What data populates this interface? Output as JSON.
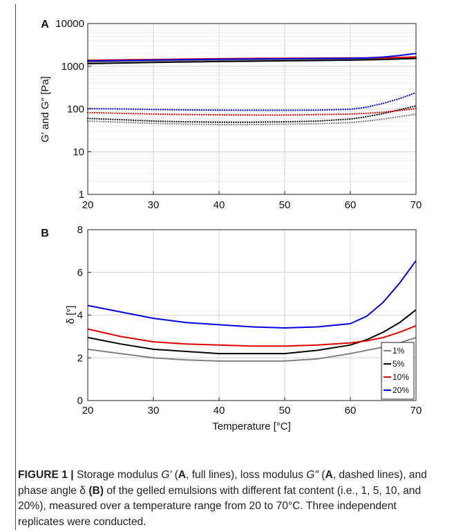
{
  "chart_data": [
    {
      "panel": "A",
      "type": "line",
      "xlabel": "",
      "ylabel": "G′ and G″ [Pa]",
      "yscale": "log",
      "xlim": [
        20,
        70
      ],
      "ylim": [
        1,
        10000
      ],
      "x_ticks": [
        "20",
        "30",
        "40",
        "50",
        "60",
        "70"
      ],
      "y_ticks": [
        "1",
        "10",
        "100",
        "1000",
        "10000"
      ],
      "grid": true,
      "x": [
        20,
        25,
        30,
        35,
        40,
        45,
        50,
        55,
        60,
        62.5,
        65,
        67.5,
        70
      ],
      "series": [
        {
          "name": "1%",
          "modulus": "G′",
          "line": "solid",
          "color": "#808080",
          "values": [
            1250,
            1290,
            1330,
            1360,
            1390,
            1410,
            1440,
            1460,
            1490,
            1500,
            1520,
            1540,
            1560
          ]
        },
        {
          "name": "5%",
          "modulus": "G′",
          "line": "solid",
          "color": "#000000",
          "values": [
            1150,
            1190,
            1230,
            1260,
            1290,
            1310,
            1340,
            1360,
            1390,
            1410,
            1440,
            1480,
            1520
          ]
        },
        {
          "name": "10%",
          "modulus": "G′",
          "line": "solid",
          "color": "#e00000",
          "values": [
            1380,
            1410,
            1440,
            1470,
            1500,
            1520,
            1540,
            1550,
            1560,
            1560,
            1560,
            1600,
            1650
          ]
        },
        {
          "name": "20%",
          "modulus": "G′",
          "line": "solid",
          "color": "#0000e0",
          "values": [
            1320,
            1360,
            1400,
            1430,
            1460,
            1480,
            1500,
            1520,
            1540,
            1570,
            1640,
            1780,
            2000
          ]
        },
        {
          "name": "1%",
          "modulus": "G″",
          "line": "dotted",
          "color": "#808080",
          "values": [
            52,
            49,
            46,
            44,
            43,
            43,
            44,
            45,
            48,
            52,
            58,
            66,
            75
          ]
        },
        {
          "name": "5%",
          "modulus": "G″",
          "line": "dotted",
          "color": "#000000",
          "values": [
            60,
            56,
            52,
            50,
            49,
            49,
            50,
            52,
            58,
            66,
            78,
            96,
            118
          ]
        },
        {
          "name": "10%",
          "modulus": "G″",
          "line": "dotted",
          "color": "#e00000",
          "values": [
            82,
            79,
            76,
            74,
            73,
            72,
            72,
            74,
            76,
            79,
            84,
            92,
            102
          ]
        },
        {
          "name": "20%",
          "modulus": "G″",
          "line": "dotted",
          "color": "#0000e0",
          "values": [
            102,
            100,
            97,
            95,
            94,
            93,
            93,
            94,
            98,
            110,
            135,
            175,
            240
          ]
        }
      ]
    },
    {
      "panel": "B",
      "type": "line",
      "xlabel": "Temperature [°C]",
      "ylabel": "δ [°]",
      "xlim": [
        20,
        70
      ],
      "ylim": [
        0,
        8
      ],
      "x_ticks": [
        "20",
        "30",
        "40",
        "50",
        "60",
        "70"
      ],
      "y_ticks": [
        "0",
        "2",
        "4",
        "6",
        "8"
      ],
      "grid": true,
      "legend_position": "bottom-right",
      "x": [
        20,
        25,
        30,
        35,
        40,
        45,
        50,
        55,
        60,
        62.5,
        65,
        67.5,
        70
      ],
      "series": [
        {
          "name": "1%",
          "color": "#808080",
          "values": [
            2.4,
            2.2,
            2.0,
            1.9,
            1.85,
            1.85,
            1.85,
            1.95,
            2.2,
            2.35,
            2.5,
            2.7,
            2.95
          ]
        },
        {
          "name": "5%",
          "color": "#000000",
          "values": [
            2.95,
            2.65,
            2.4,
            2.3,
            2.2,
            2.2,
            2.2,
            2.35,
            2.6,
            2.85,
            3.2,
            3.65,
            4.25
          ]
        },
        {
          "name": "10%",
          "color": "#e00000",
          "values": [
            3.35,
            3.0,
            2.75,
            2.65,
            2.6,
            2.55,
            2.55,
            2.6,
            2.7,
            2.8,
            2.95,
            3.2,
            3.5
          ]
        },
        {
          "name": "20%",
          "color": "#0000e0",
          "values": [
            4.45,
            4.15,
            3.85,
            3.65,
            3.55,
            3.45,
            3.4,
            3.45,
            3.6,
            3.95,
            4.6,
            5.5,
            6.55
          ]
        }
      ]
    }
  ],
  "caption": {
    "label": "FIGURE 1 |",
    "t1": " Storage modulus ",
    "g1": "G′",
    "t2": " (",
    "a1": "A",
    "t3": ", full lines), loss modulus ",
    "g2": "G″",
    "t4": " (",
    "a2": "A",
    "t5": ", dashed lines), and phase angle δ ",
    "b1": "(B)",
    "t6": " of the gelled emulsions with different fat content (i.e., 1, 5, 10, and 20%), measured over a temperature range from 20 to 70°C. Three independent replicates were conducted."
  }
}
